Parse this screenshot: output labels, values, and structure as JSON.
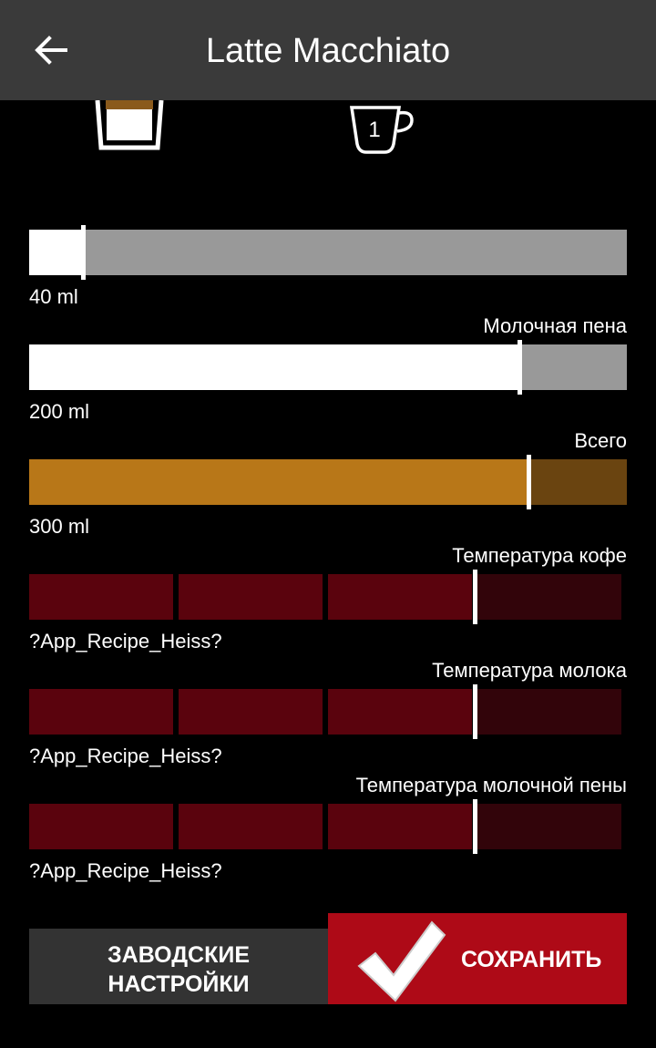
{
  "header": {
    "title": "Latte Macchiato",
    "back_icon": "arrow-left-icon"
  },
  "icons": {
    "glass": "latte-glass-icon",
    "cup": "cup-one-icon",
    "cup_number": "1"
  },
  "coffee_amount": {
    "value_label": "40 ml",
    "fraction": 0.09
  },
  "milk_foam": {
    "label": "Молочная пена",
    "value_label": "200 ml",
    "fraction": 0.82
  },
  "total": {
    "label": "Всего",
    "value_label": "300 ml",
    "fraction": 0.835,
    "color_fill": "#b87718",
    "color_track": "#6a4410"
  },
  "temperatures": [
    {
      "label": "Температура кофе",
      "value_label": "?App_Recipe_Heiss?",
      "level": 3,
      "of": 4
    },
    {
      "label": "Температура молока",
      "value_label": "?App_Recipe_Heiss?",
      "level": 3,
      "of": 4
    },
    {
      "label": "Температура молочной пены",
      "value_label": "?App_Recipe_Heiss?",
      "level": 3,
      "of": 4
    }
  ],
  "colors": {
    "header_bg": "#3a3a3a",
    "seg_active": "#5a030d",
    "seg_inactive": "#32040a",
    "save_bg": "#ae0a17"
  },
  "buttons": {
    "factory_label": "ЗАВОДСКИЕ\nНАСТРОЙКИ",
    "save_label": "СОХРАНИТЬ",
    "save_icon": "checkmark-icon"
  }
}
